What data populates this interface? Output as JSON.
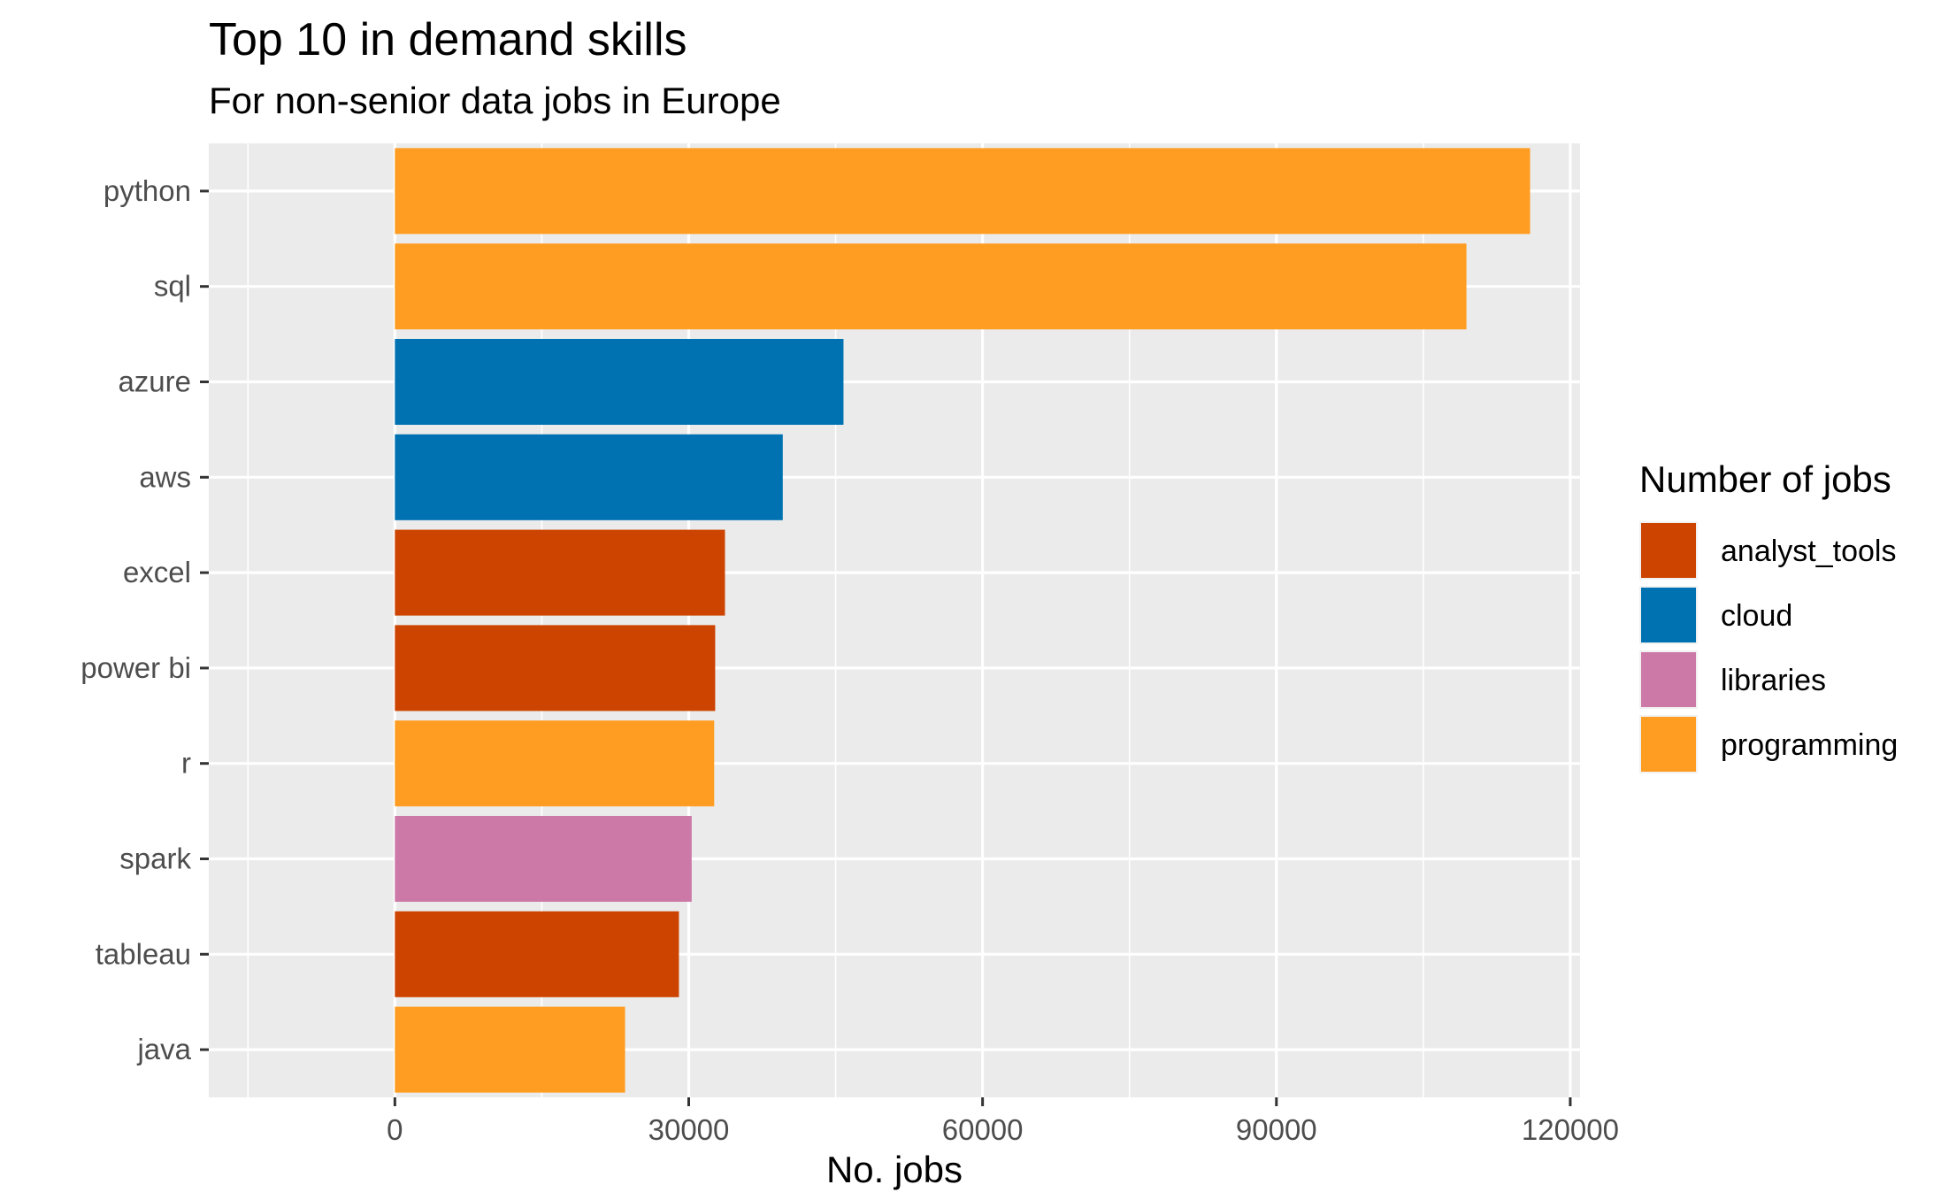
{
  "chart_data": {
    "type": "bar",
    "orientation": "horizontal",
    "title": "Top 10 in demand skills",
    "subtitle": "For non-senior data jobs in Europe",
    "xlabel": "No. jobs",
    "ylabel": "",
    "xlim": [
      -19000,
      121000
    ],
    "xticks": [
      "0",
      "30000",
      "60000",
      "90000",
      "120000"
    ],
    "grid": true,
    "legend": {
      "title": "Number of jobs",
      "position": "right",
      "entries": [
        {
          "label": "analyst_tools",
          "color": "#cc4400"
        },
        {
          "label": "cloud",
          "color": "#0072b2"
        },
        {
          "label": "libraries",
          "color": "#cc79a7"
        },
        {
          "label": "programming",
          "color": "#ff9c22"
        }
      ]
    },
    "categories": [
      "python",
      "sql",
      "azure",
      "aws",
      "excel",
      "power bi",
      "r",
      "spark",
      "tableau",
      "java"
    ],
    "values": [
      115900,
      109400,
      45800,
      39600,
      33700,
      32700,
      32600,
      30300,
      29000,
      23500
    ],
    "groups": [
      "programming",
      "programming",
      "cloud",
      "cloud",
      "analyst_tools",
      "analyst_tools",
      "programming",
      "libraries",
      "analyst_tools",
      "programming"
    ],
    "colors": {
      "analyst_tools": "#cc4400",
      "cloud": "#0072b2",
      "libraries": "#cc79a7",
      "programming": "#ff9c22",
      "panel_background": "#ebebeb",
      "grid": "#ffffff"
    }
  }
}
